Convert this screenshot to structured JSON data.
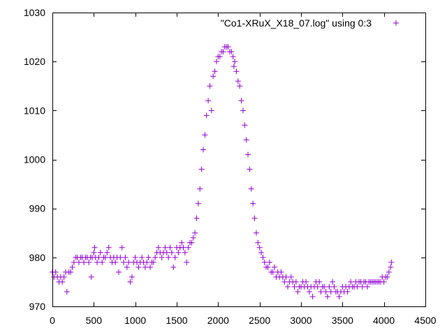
{
  "chart_data": {
    "type": "scatter",
    "marker": "+",
    "color": "#9400d3",
    "xlim": [
      0,
      4500
    ],
    "ylim": [
      970,
      1030
    ],
    "xticks": [
      0,
      500,
      1000,
      1500,
      2000,
      2500,
      3000,
      3500,
      4000,
      4500
    ],
    "yticks": [
      970,
      980,
      990,
      1000,
      1010,
      1020,
      1030
    ],
    "grid": false,
    "legend_position": "top-right",
    "series": [
      {
        "name": "\"Co1-XRuX_X18_07.log\" using 0:3",
        "points": [
          [
            0,
            977
          ],
          [
            20,
            976
          ],
          [
            40,
            977
          ],
          [
            60,
            976
          ],
          [
            80,
            975
          ],
          [
            100,
            976
          ],
          [
            120,
            975
          ],
          [
            140,
            976
          ],
          [
            160,
            977
          ],
          [
            175,
            973
          ],
          [
            200,
            977
          ],
          [
            220,
            977
          ],
          [
            240,
            978
          ],
          [
            260,
            979
          ],
          [
            280,
            980
          ],
          [
            300,
            980
          ],
          [
            320,
            979
          ],
          [
            340,
            980
          ],
          [
            360,
            980
          ],
          [
            380,
            979
          ],
          [
            400,
            980
          ],
          [
            420,
            980
          ],
          [
            440,
            979
          ],
          [
            460,
            980
          ],
          [
            470,
            976
          ],
          [
            480,
            980
          ],
          [
            500,
            981
          ],
          [
            510,
            982
          ],
          [
            520,
            980
          ],
          [
            540,
            979
          ],
          [
            560,
            980
          ],
          [
            580,
            981
          ],
          [
            600,
            979
          ],
          [
            620,
            980
          ],
          [
            640,
            980
          ],
          [
            660,
            981
          ],
          [
            680,
            982
          ],
          [
            700,
            980
          ],
          [
            720,
            979
          ],
          [
            740,
            980
          ],
          [
            760,
            979
          ],
          [
            780,
            980
          ],
          [
            800,
            977
          ],
          [
            820,
            980
          ],
          [
            840,
            982
          ],
          [
            860,
            979
          ],
          [
            880,
            980
          ],
          [
            900,
            978
          ],
          [
            920,
            979
          ],
          [
            940,
            975
          ],
          [
            960,
            976
          ],
          [
            980,
            979
          ],
          [
            1000,
            980
          ],
          [
            1020,
            979
          ],
          [
            1040,
            978
          ],
          [
            1060,
            979
          ],
          [
            1080,
            980
          ],
          [
            1100,
            979
          ],
          [
            1120,
            978
          ],
          [
            1140,
            979
          ],
          [
            1160,
            980
          ],
          [
            1180,
            978
          ],
          [
            1200,
            979
          ],
          [
            1220,
            979
          ],
          [
            1240,
            980
          ],
          [
            1260,
            981
          ],
          [
            1280,
            982
          ],
          [
            1300,
            981
          ],
          [
            1320,
            980
          ],
          [
            1340,
            981
          ],
          [
            1360,
            982
          ],
          [
            1380,
            981
          ],
          [
            1400,
            980
          ],
          [
            1420,
            982
          ],
          [
            1440,
            981
          ],
          [
            1460,
            978
          ],
          [
            1480,
            980
          ],
          [
            1500,
            982
          ],
          [
            1520,
            981
          ],
          [
            1540,
            982
          ],
          [
            1560,
            983
          ],
          [
            1580,
            982
          ],
          [
            1600,
            981
          ],
          [
            1620,
            979
          ],
          [
            1640,
            982
          ],
          [
            1660,
            983
          ],
          [
            1680,
            983
          ],
          [
            1700,
            984
          ],
          [
            1720,
            985
          ],
          [
            1740,
            988
          ],
          [
            1760,
            991
          ],
          [
            1780,
            994
          ],
          [
            1800,
            998
          ],
          [
            1820,
            1002
          ],
          [
            1840,
            1005
          ],
          [
            1860,
            1009
          ],
          [
            1880,
            1012
          ],
          [
            1900,
            1015
          ],
          [
            1920,
            1010
          ],
          [
            1940,
            1017
          ],
          [
            1960,
            1018
          ],
          [
            1980,
            1020
          ],
          [
            2000,
            1021
          ],
          [
            2020,
            1021
          ],
          [
            2040,
            1022
          ],
          [
            2060,
            1022
          ],
          [
            2080,
            1023
          ],
          [
            2100,
            1023
          ],
          [
            2120,
            1023
          ],
          [
            2140,
            1022
          ],
          [
            2160,
            1022
          ],
          [
            2180,
            1021
          ],
          [
            2190,
            1019
          ],
          [
            2200,
            1020
          ],
          [
            2220,
            1018
          ],
          [
            2240,
            1016
          ],
          [
            2260,
            1015
          ],
          [
            2280,
            1012
          ],
          [
            2300,
            1010
          ],
          [
            2320,
            1007
          ],
          [
            2340,
            1004
          ],
          [
            2360,
            1001
          ],
          [
            2380,
            998
          ],
          [
            2400,
            994
          ],
          [
            2420,
            991
          ],
          [
            2440,
            988
          ],
          [
            2460,
            985
          ],
          [
            2480,
            983
          ],
          [
            2500,
            982
          ],
          [
            2520,
            981
          ],
          [
            2540,
            980
          ],
          [
            2560,
            979
          ],
          [
            2580,
            978
          ],
          [
            2600,
            978
          ],
          [
            2620,
            979
          ],
          [
            2640,
            977
          ],
          [
            2660,
            977
          ],
          [
            2680,
            978
          ],
          [
            2700,
            976
          ],
          [
            2720,
            977
          ],
          [
            2740,
            976
          ],
          [
            2760,
            977
          ],
          [
            2780,
            976
          ],
          [
            2800,
            975
          ],
          [
            2820,
            976
          ],
          [
            2840,
            974
          ],
          [
            2860,
            975
          ],
          [
            2880,
            976
          ],
          [
            2900,
            975
          ],
          [
            2920,
            974
          ],
          [
            2940,
            975
          ],
          [
            2960,
            973
          ],
          [
            2980,
            974
          ],
          [
            3000,
            974
          ],
          [
            3020,
            975
          ],
          [
            3040,
            974
          ],
          [
            3060,
            975
          ],
          [
            3080,
            974
          ],
          [
            3100,
            973
          ],
          [
            3120,
            974
          ],
          [
            3140,
            972
          ],
          [
            3160,
            974
          ],
          [
            3180,
            975
          ],
          [
            3200,
            974
          ],
          [
            3220,
            975
          ],
          [
            3240,
            973
          ],
          [
            3260,
            974
          ],
          [
            3280,
            974
          ],
          [
            3300,
            973
          ],
          [
            3320,
            972
          ],
          [
            3340,
            974
          ],
          [
            3360,
            973
          ],
          [
            3380,
            975
          ],
          [
            3400,
            974
          ],
          [
            3420,
            973
          ],
          [
            3440,
            973
          ],
          [
            3460,
            972
          ],
          [
            3480,
            973
          ],
          [
            3500,
            974
          ],
          [
            3520,
            973
          ],
          [
            3540,
            974
          ],
          [
            3560,
            973
          ],
          [
            3580,
            974
          ],
          [
            3600,
            975
          ],
          [
            3620,
            974
          ],
          [
            3640,
            974
          ],
          [
            3660,
            975
          ],
          [
            3680,
            974
          ],
          [
            3700,
            975
          ],
          [
            3720,
            975
          ],
          [
            3740,
            974
          ],
          [
            3760,
            975
          ],
          [
            3780,
            975
          ],
          [
            3800,
            974
          ],
          [
            3820,
            975
          ],
          [
            3840,
            975
          ],
          [
            3860,
            975
          ],
          [
            3880,
            975
          ],
          [
            3900,
            975
          ],
          [
            3920,
            975
          ],
          [
            3940,
            975
          ],
          [
            3960,
            975
          ],
          [
            3980,
            976
          ],
          [
            4000,
            975
          ],
          [
            4020,
            976
          ],
          [
            4040,
            976
          ],
          [
            4060,
            977
          ],
          [
            4080,
            978
          ],
          [
            4090,
            979
          ]
        ]
      }
    ]
  }
}
